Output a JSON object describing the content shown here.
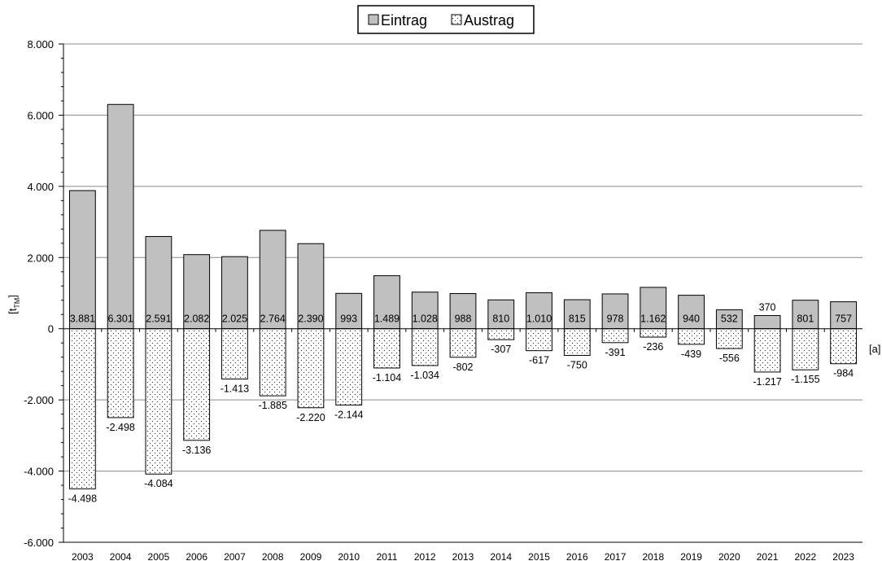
{
  "chart_data": {
    "type": "bar",
    "categories": [
      "2003",
      "2004",
      "2005",
      "2006",
      "2007",
      "2008",
      "2009",
      "2010",
      "2011",
      "2012",
      "2013",
      "2014",
      "2015",
      "2016",
      "2017",
      "2018",
      "2019",
      "2020",
      "2021",
      "2022",
      "2023"
    ],
    "series": [
      {
        "name": "Eintrag",
        "values": [
          3881,
          6301,
          2591,
          2082,
          2025,
          2764,
          2390,
          993,
          1489,
          1028,
          988,
          810,
          1010,
          815,
          978,
          1162,
          940,
          532,
          370,
          801,
          757
        ],
        "labels": [
          "3.881",
          "6.301",
          "2.591",
          "2.082",
          "2.025",
          "2.764",
          "2.390",
          "993",
          "1.489",
          "1.028",
          "988",
          "810",
          "1.010",
          "815",
          "978",
          "1.162",
          "940",
          "532",
          "370",
          "801",
          "757"
        ],
        "color": "#c0c0c0"
      },
      {
        "name": "Austrag",
        "values": [
          -4498,
          -2498,
          -4084,
          -3136,
          -1413,
          -1885,
          -2220,
          -2144,
          -1104,
          -1034,
          -802,
          -307,
          -617,
          -750,
          -391,
          -236,
          -439,
          -556,
          -1217,
          -1155,
          -984
        ],
        "labels": [
          "-4.498",
          "-2.498",
          "-4.084",
          "-3.136",
          "-1.413",
          "-1.885",
          "-2.220",
          "-2.144",
          "-1.104",
          "-1.034",
          "-802",
          "-307",
          "-617",
          "-750",
          "-391",
          "-236",
          "-439",
          "-556",
          "-1.217",
          "-1.155",
          "-984"
        ],
        "color": "#ffffff",
        "pattern": "dotted"
      }
    ],
    "ylim": [
      -6000,
      8000
    ],
    "yticks": [
      -6000,
      -4000,
      -2000,
      0,
      2000,
      4000,
      6000,
      8000
    ],
    "ytick_labels": [
      "-6.000",
      "-4.000",
      "-2.000",
      "0",
      "2.000",
      "4.000",
      "6.000",
      "8.000"
    ],
    "ylabel": "[t",
    "ylabel_sub": "TM",
    "ylabel_close": "]",
    "xlabel": "[a]",
    "grid": true,
    "legend_position": "top-center"
  }
}
